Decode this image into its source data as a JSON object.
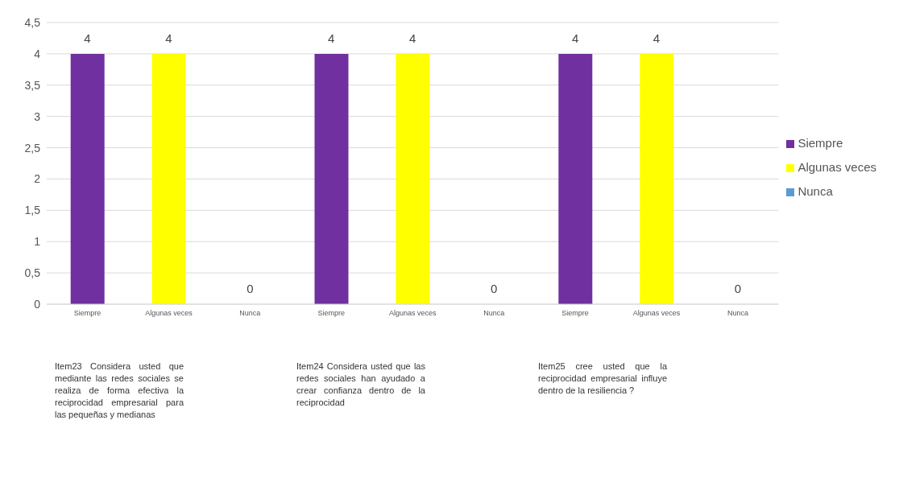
{
  "chart_data": {
    "type": "bar",
    "stacked": true,
    "categories": [
      "Siempre",
      "Algunas veces",
      "Nunca",
      "Siempre",
      "Algunas veces",
      "Nunca",
      "Siempre",
      "Algunas veces",
      "Nunca"
    ],
    "series": [
      {
        "name": "Siempre",
        "color": "#7030a0",
        "values": [
          4,
          null,
          null,
          4,
          null,
          null,
          4,
          null,
          null
        ]
      },
      {
        "name": "Algunas veces",
        "color": "#ffff00",
        "values": [
          null,
          4,
          null,
          null,
          4,
          null,
          null,
          4,
          null
        ]
      },
      {
        "name": "Nunca",
        "color": "#5b9bd5",
        "values": [
          null,
          null,
          0,
          null,
          null,
          0,
          null,
          null,
          0
        ]
      }
    ],
    "ylim": [
      0,
      4.5
    ],
    "yticks": [
      {
        "value": 0,
        "label": "0"
      },
      {
        "value": 0.5,
        "label": "0,5"
      },
      {
        "value": 1,
        "label": "1"
      },
      {
        "value": 1.5,
        "label": "1,5"
      },
      {
        "value": 2,
        "label": "2"
      },
      {
        "value": 2.5,
        "label": "2,5"
      },
      {
        "value": 3,
        "label": "3"
      },
      {
        "value": 3.5,
        "label": "3,5"
      },
      {
        "value": 4,
        "label": "4"
      },
      {
        "value": 4.5,
        "label": "4,5"
      }
    ],
    "grid": "y",
    "legend": "right",
    "data_labels": true,
    "annotations": [
      "Item23 Considera usted que mediante las redes sociales se realiza de forma efectiva la reciprocidad empresarial para las pequeñas y medianas",
      "Item24 Considera usted que las redes sociales han ayudado a crear confianza dentro de la reciprocidad",
      "Item25 cree usted que la reciprocidad empresarial influye dentro de la resiliencia ?"
    ]
  }
}
